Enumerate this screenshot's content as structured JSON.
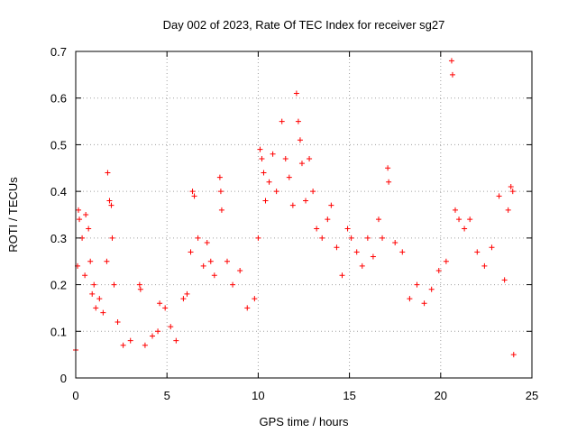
{
  "chart_data": {
    "type": "scatter",
    "title": "Day 002 of 2023, Rate Of TEC Index for receiver sg27",
    "xlabel": "GPS time / hours",
    "ylabel": "ROTI / TECUs",
    "xlim": [
      0,
      25
    ],
    "ylim": [
      0,
      0.7
    ],
    "xticks": [
      "0",
      "5",
      "10",
      "15",
      "20",
      "25"
    ],
    "yticks": [
      "0",
      "0.1",
      "0.2",
      "0.3",
      "0.4",
      "0.5",
      "0.6",
      "0.7"
    ],
    "grid": true,
    "marker": "+",
    "color": "#ff0000",
    "series": [
      {
        "points": [
          [
            0.0,
            0.06
          ],
          [
            0.1,
            0.24
          ],
          [
            0.15,
            0.36
          ],
          [
            0.2,
            0.34
          ],
          [
            0.35,
            0.3
          ],
          [
            0.5,
            0.22
          ],
          [
            0.55,
            0.35
          ],
          [
            0.7,
            0.32
          ],
          [
            0.8,
            0.25
          ],
          [
            0.9,
            0.18
          ],
          [
            1.0,
            0.2
          ],
          [
            1.1,
            0.15
          ],
          [
            1.3,
            0.17
          ],
          [
            1.5,
            0.14
          ],
          [
            1.7,
            0.25
          ],
          [
            1.75,
            0.44
          ],
          [
            1.85,
            0.38
          ],
          [
            1.95,
            0.37
          ],
          [
            2.0,
            0.3
          ],
          [
            2.1,
            0.2
          ],
          [
            2.3,
            0.12
          ],
          [
            2.6,
            0.07
          ],
          [
            3.0,
            0.08
          ],
          [
            3.5,
            0.2
          ],
          [
            3.55,
            0.19
          ],
          [
            3.8,
            0.07
          ],
          [
            4.2,
            0.09
          ],
          [
            4.5,
            0.1
          ],
          [
            4.6,
            0.16
          ],
          [
            4.9,
            0.15
          ],
          [
            5.2,
            0.11
          ],
          [
            5.5,
            0.08
          ],
          [
            5.9,
            0.17
          ],
          [
            6.1,
            0.18
          ],
          [
            6.3,
            0.27
          ],
          [
            6.4,
            0.4
          ],
          [
            6.5,
            0.39
          ],
          [
            6.7,
            0.3
          ],
          [
            7.0,
            0.24
          ],
          [
            7.2,
            0.29
          ],
          [
            7.4,
            0.25
          ],
          [
            7.6,
            0.22
          ],
          [
            7.9,
            0.43
          ],
          [
            7.95,
            0.4
          ],
          [
            8.0,
            0.36
          ],
          [
            8.3,
            0.25
          ],
          [
            8.6,
            0.2
          ],
          [
            9.0,
            0.23
          ],
          [
            9.4,
            0.15
          ],
          [
            9.8,
            0.17
          ],
          [
            10.0,
            0.3
          ],
          [
            10.1,
            0.49
          ],
          [
            10.2,
            0.47
          ],
          [
            10.3,
            0.44
          ],
          [
            10.4,
            0.38
          ],
          [
            10.6,
            0.42
          ],
          [
            10.8,
            0.48
          ],
          [
            11.0,
            0.4
          ],
          [
            11.3,
            0.55
          ],
          [
            11.5,
            0.47
          ],
          [
            11.7,
            0.43
          ],
          [
            11.9,
            0.37
          ],
          [
            12.1,
            0.61
          ],
          [
            12.2,
            0.55
          ],
          [
            12.3,
            0.51
          ],
          [
            12.4,
            0.46
          ],
          [
            12.6,
            0.38
          ],
          [
            12.8,
            0.47
          ],
          [
            13.0,
            0.4
          ],
          [
            13.2,
            0.32
          ],
          [
            13.5,
            0.3
          ],
          [
            13.8,
            0.34
          ],
          [
            14.0,
            0.37
          ],
          [
            14.3,
            0.28
          ],
          [
            14.6,
            0.22
          ],
          [
            14.9,
            0.32
          ],
          [
            15.1,
            0.3
          ],
          [
            15.4,
            0.27
          ],
          [
            15.7,
            0.24
          ],
          [
            16.0,
            0.3
          ],
          [
            16.3,
            0.26
          ],
          [
            16.6,
            0.34
          ],
          [
            16.8,
            0.3
          ],
          [
            17.1,
            0.45
          ],
          [
            17.15,
            0.42
          ],
          [
            17.5,
            0.29
          ],
          [
            17.9,
            0.27
          ],
          [
            18.3,
            0.17
          ],
          [
            18.7,
            0.2
          ],
          [
            19.1,
            0.16
          ],
          [
            19.5,
            0.19
          ],
          [
            19.9,
            0.23
          ],
          [
            20.3,
            0.25
          ],
          [
            20.6,
            0.68
          ],
          [
            20.65,
            0.65
          ],
          [
            20.8,
            0.36
          ],
          [
            21.0,
            0.34
          ],
          [
            21.3,
            0.32
          ],
          [
            21.6,
            0.34
          ],
          [
            22.0,
            0.27
          ],
          [
            22.4,
            0.24
          ],
          [
            22.8,
            0.28
          ],
          [
            23.2,
            0.39
          ],
          [
            23.5,
            0.21
          ],
          [
            23.7,
            0.36
          ],
          [
            23.85,
            0.41
          ],
          [
            23.95,
            0.4
          ],
          [
            24.0,
            0.05
          ]
        ]
      }
    ]
  }
}
